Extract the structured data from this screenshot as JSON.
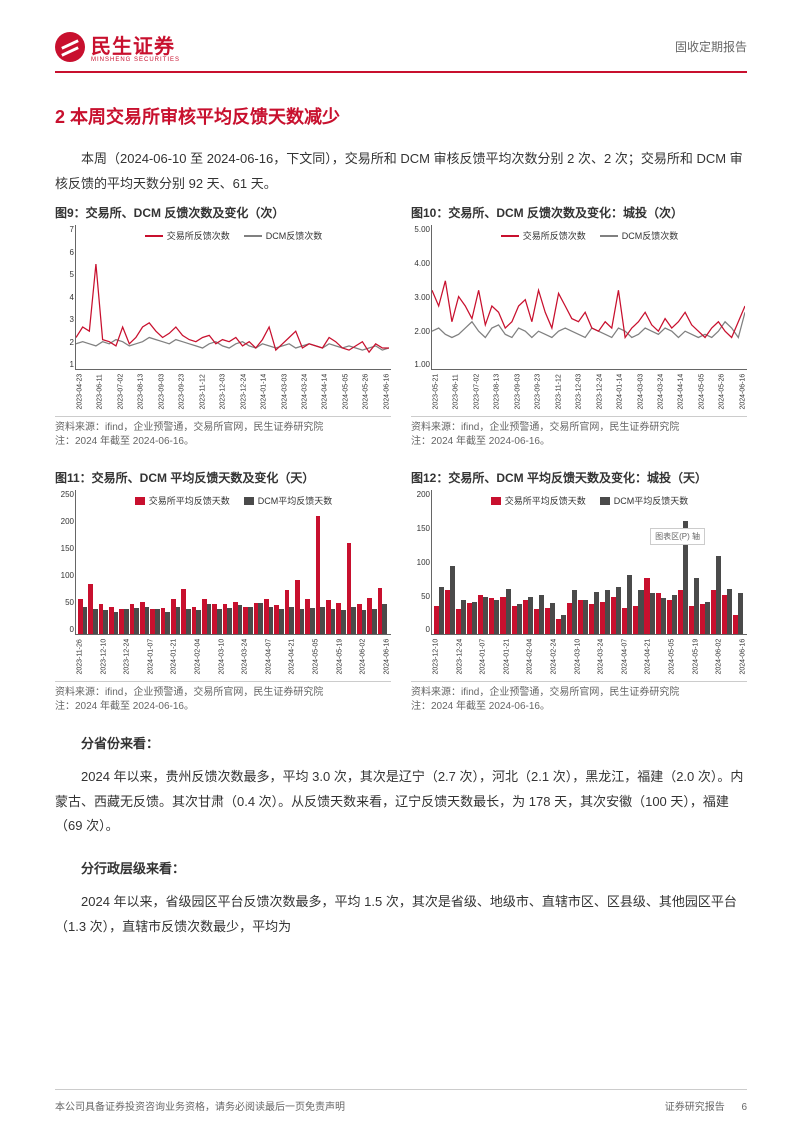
{
  "header": {
    "company_cn": "民生证券",
    "company_en": "MINSHENG SECURITIES",
    "report_type": "固收定期报告"
  },
  "section": {
    "title": "2 本周交易所审核平均反馈天数减少",
    "intro": "本周（2024-06-10 至 2024-06-16，下文同），交易所和 DCM 审核反馈平均次数分别 2 次、2 次；交易所和 DCM 审核反馈的平均天数分别 92 天、61 天。"
  },
  "charts": {
    "fig9": {
      "type": "line",
      "title": "图9：交易所、DCM 反馈次数及变化（次）",
      "series": [
        {
          "name": "交易所反馈次数",
          "color": "#c8102e"
        },
        {
          "name": "DCM反馈次数",
          "color": "#808080"
        }
      ],
      "ylim": [
        1,
        7
      ],
      "yticks": [
        1,
        2,
        3,
        4,
        5,
        6,
        7
      ],
      "xticks": [
        "2023-04-23",
        "2023-06-11",
        "2023-07-02",
        "2023-08-13",
        "2023-09-03",
        "2023-09-23",
        "2023-11-12",
        "2023-12-03",
        "2023-12-24",
        "2024-01-14",
        "2024-03-03",
        "2024-03-24",
        "2024-04-14",
        "2024-05-05",
        "2024-05-26",
        "2024-06-16"
      ],
      "red": [
        2.5,
        3.0,
        2.8,
        6.0,
        2.4,
        2.3,
        2.1,
        3.0,
        2.2,
        2.5,
        3.0,
        3.2,
        2.8,
        2.5,
        2.7,
        3.0,
        2.6,
        2.4,
        2.3,
        2.5,
        2.6,
        2.2,
        2.4,
        2.3,
        2.5,
        2.1,
        2.3,
        2.0,
        2.4,
        3.0,
        1.9,
        2.2,
        2.5,
        2.8,
        2.0,
        2.2,
        2.1,
        2.0,
        2.5,
        2.3,
        2.0,
        1.9,
        2.1,
        2.3,
        1.8,
        2.2,
        2.0,
        2.0
      ],
      "grey": [
        2.2,
        2.3,
        2.2,
        2.1,
        2.3,
        2.2,
        2.4,
        2.3,
        2.1,
        2.2,
        2.3,
        2.5,
        2.4,
        2.3,
        2.2,
        2.4,
        2.3,
        2.2,
        2.1,
        2.0,
        2.2,
        2.3,
        2.1,
        2.0,
        2.2,
        2.3,
        2.1,
        2.0,
        2.2,
        2.1,
        2.0,
        2.1,
        2.2,
        2.0,
        2.1,
        2.2,
        2.1,
        2.0,
        2.2,
        2.1,
        2.0,
        2.1,
        2.0,
        1.9,
        2.0,
        2.1,
        1.9,
        2.0
      ],
      "source": "资料来源：ifind，企业预警通，交易所官网，民生证券研究院",
      "note": "注：2024 年截至 2024-06-16。"
    },
    "fig10": {
      "type": "line",
      "title": "图10：交易所、DCM 反馈次数及变化：城投（次）",
      "series": [
        {
          "name": "交易所反馈次数",
          "color": "#c8102e"
        },
        {
          "name": "DCM反馈次数",
          "color": "#808080"
        }
      ],
      "ylim": [
        1.0,
        5.0
      ],
      "yticks": [
        "1.00",
        "2.00",
        "3.00",
        "4.00",
        "5.00"
      ],
      "xticks": [
        "2023-05-21",
        "2023-06-11",
        "2023-07-02",
        "2023-08-13",
        "2023-09-03",
        "2023-09-23",
        "2023-11-12",
        "2023-12-03",
        "2023-12-24",
        "2024-01-14",
        "2024-03-03",
        "2024-03-24",
        "2024-04-14",
        "2024-05-05",
        "2024-05-26",
        "2024-06-16"
      ],
      "red": [
        3.5,
        3.0,
        3.8,
        2.5,
        3.3,
        3.0,
        2.6,
        3.5,
        2.4,
        3.0,
        2.8,
        2.3,
        2.5,
        3.0,
        3.2,
        2.5,
        3.5,
        2.8,
        2.3,
        3.4,
        3.0,
        2.6,
        2.5,
        2.8,
        2.3,
        2.2,
        2.5,
        2.3,
        3.5,
        2.0,
        2.3,
        2.5,
        2.8,
        2.4,
        2.2,
        2.6,
        2.3,
        2.5,
        2.8,
        2.4,
        2.2,
        2.0,
        2.3,
        2.5,
        2.2,
        2.0,
        2.5,
        3.0
      ],
      "grey": [
        2.2,
        2.3,
        2.1,
        2.0,
        2.1,
        2.3,
        2.5,
        2.2,
        2.0,
        2.3,
        2.4,
        2.1,
        2.0,
        2.3,
        2.2,
        2.0,
        2.2,
        2.1,
        2.0,
        2.2,
        2.3,
        2.2,
        2.1,
        2.0,
        2.3,
        2.2,
        2.1,
        2.0,
        2.3,
        2.2,
        2.0,
        2.1,
        2.3,
        2.2,
        2.1,
        2.3,
        2.2,
        2.0,
        2.2,
        2.1,
        2.0,
        2.1,
        2.0,
        2.2,
        2.5,
        2.3,
        2.0,
        2.8
      ],
      "source": "资料来源：ifind，企业预警通，交易所官网，民生证券研究院",
      "note": "注：2024 年截至 2024-06-16。"
    },
    "fig11": {
      "type": "bar",
      "title": "图11：交易所、DCM 平均反馈天数及变化（天）",
      "series": [
        {
          "name": "交易所平均反馈天数",
          "color": "#c8102e"
        },
        {
          "name": "DCM平均反馈天数",
          "color": "#4a4a4a"
        }
      ],
      "ylim": [
        0,
        250
      ],
      "yticks": [
        0,
        50,
        100,
        150,
        200,
        250
      ],
      "xticks": [
        "2023-11-26",
        "2023-12-10",
        "2023-12-24",
        "2024-01-07",
        "2024-01-21",
        "2024-02-04",
        "2024-03-10",
        "2024-03-24",
        "2024-04-07",
        "2024-04-21",
        "2024-05-05",
        "2024-05-19",
        "2024-06-02",
        "2024-06-16"
      ],
      "red": [
        70,
        100,
        60,
        55,
        50,
        60,
        65,
        50,
        52,
        70,
        90,
        55,
        70,
        60,
        60,
        65,
        55,
        62,
        70,
        58,
        88,
        108,
        70,
        235,
        68,
        62,
        182,
        60,
        72,
        92
      ],
      "grey": [
        55,
        50,
        48,
        45,
        50,
        52,
        55,
        50,
        45,
        55,
        50,
        48,
        60,
        50,
        52,
        58,
        55,
        62,
        55,
        50,
        55,
        50,
        52,
        55,
        50,
        48,
        55,
        48,
        50,
        61
      ],
      "source": "资料来源：ifind，企业预警通，交易所官网，民生证券研究院",
      "note": "注：2024 年截至 2024-06-16。"
    },
    "fig12": {
      "type": "bar",
      "title": "图12：交易所、DCM 平均反馈天数及变化：城投（天）",
      "series": [
        {
          "name": "交易所平均反馈天数",
          "color": "#c8102e"
        },
        {
          "name": "DCM平均反馈天数",
          "color": "#4a4a4a"
        }
      ],
      "ylim": [
        0,
        200
      ],
      "yticks": [
        0,
        50,
        100,
        150,
        200
      ],
      "xticks": [
        "2023-12-10",
        "2023-12-24",
        "2024-01-07",
        "2024-01-21",
        "2024-02-04",
        "2024-02-24",
        "2024-03-10",
        "2024-03-24",
        "2024-04-07",
        "2024-04-21",
        "2024-05-05",
        "2024-05-19",
        "2024-06-02",
        "2024-06-16"
      ],
      "red": [
        45,
        70,
        40,
        50,
        62,
        58,
        60,
        45,
        55,
        40,
        42,
        25,
        50,
        55,
        48,
        52,
        60,
        42,
        45,
        90,
        65,
        55,
        70,
        45,
        48,
        70,
        62,
        30
      ],
      "grey": [
        75,
        108,
        55,
        52,
        60,
        55,
        72,
        48,
        60,
        62,
        50,
        30,
        70,
        55,
        68,
        70,
        75,
        95,
        70,
        65,
        58,
        62,
        180,
        90,
        52,
        125,
        72,
        65
      ],
      "tooltip": "图表区(P) 轴",
      "source": "资料来源：ifind，企业预警通，交易所官网，民生证券研究院",
      "note": "注：2024 年截至 2024-06-16。"
    }
  },
  "body2": {
    "p1_bold": "分省份来看：",
    "p2": "2024 年以来，贵州反馈次数最多，平均 3.0 次，其次是辽宁（2.7 次），河北（2.1 次），黑龙江，福建（2.0 次）。内蒙古、西藏无反馈。其次甘肃（0.4 次）。从反馈天数来看，辽宁反馈天数最长，为 178 天，其次安徽（100 天），福建（69 次）。",
    "p3_bold": "分行政层级来看：",
    "p4": "2024 年以来，省级园区平台反馈次数最多，平均 1.5 次，其次是省级、地级市、直辖市区、区县级、其他园区平台（1.3 次），直辖市反馈次数最少，平均为"
  },
  "footer": {
    "left": "本公司具备证券投资咨询业务资格，请务必阅读最后一页免责声明",
    "right": "证券研究报告",
    "page": "6"
  },
  "colors": {
    "brand": "#c8102e",
    "grey": "#808080",
    "dark_grey": "#4a4a4a",
    "text": "#333333",
    "border": "#cccccc"
  }
}
